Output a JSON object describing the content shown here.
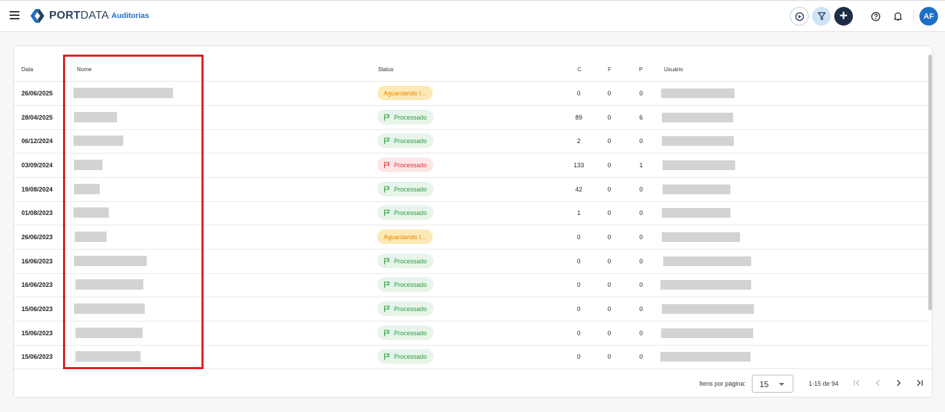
{
  "header": {
    "logo_text_1": "PORT",
    "logo_text_2": "DATA",
    "section": "Auditorias",
    "avatar": "AF",
    "add_label": "+"
  },
  "table": {
    "columns": [
      "Data",
      "Nome",
      "Status",
      "C",
      "F",
      "P",
      "Usuário"
    ],
    "rows": [
      {
        "date": "26/06/2025",
        "status": "Aguardando I...",
        "status_type": "wait",
        "c": "0",
        "f": "0",
        "p": "0"
      },
      {
        "date": "28/04/2025",
        "status": "Processado",
        "status_type": "ok",
        "c": "89",
        "f": "0",
        "p": "6"
      },
      {
        "date": "06/12/2024",
        "status": "Processado",
        "status_type": "ok",
        "c": "2",
        "f": "0",
        "p": "0"
      },
      {
        "date": "03/09/2024",
        "status": "Processado",
        "status_type": "error",
        "c": "133",
        "f": "0",
        "p": "1"
      },
      {
        "date": "19/08/2024",
        "status": "Processado",
        "status_type": "ok",
        "c": "42",
        "f": "0",
        "p": "0"
      },
      {
        "date": "01/08/2023",
        "status": "Processado",
        "status_type": "ok",
        "c": "1",
        "f": "0",
        "p": "0"
      },
      {
        "date": "26/06/2023",
        "status": "Aguardando I...",
        "status_type": "wait",
        "c": "0",
        "f": "0",
        "p": "0"
      },
      {
        "date": "16/06/2023",
        "status": "Processado",
        "status_type": "ok",
        "c": "0",
        "f": "0",
        "p": "0"
      },
      {
        "date": "16/06/2023",
        "status": "Processado",
        "status_type": "ok",
        "c": "0",
        "f": "0",
        "p": "0"
      },
      {
        "date": "15/06/2023",
        "status": "Processado",
        "status_type": "ok",
        "c": "0",
        "f": "0",
        "p": "0"
      },
      {
        "date": "15/06/2023",
        "status": "Processado",
        "status_type": "ok",
        "c": "0",
        "f": "0",
        "p": "0"
      },
      {
        "date": "15/06/2023",
        "status": "Processado",
        "status_type": "ok",
        "c": "0",
        "f": "0",
        "p": "0"
      }
    ]
  },
  "footer": {
    "items_per_page_label": "Itens por página:",
    "items_per_page_value": "15",
    "range": "1-15 de 94"
  },
  "colors": {
    "accent": "#1e6fc7",
    "navy": "#1c2d46",
    "ok": "#2e9b46",
    "error": "#d8343f",
    "wait": "#e08a00",
    "highlight": "#d9201e"
  },
  "icons": [
    "menu-icon",
    "logo-icon",
    "play-icon",
    "filter-icon",
    "add-icon",
    "help-icon",
    "bell-icon",
    "flag-icon",
    "first-page-icon",
    "prev-page-icon",
    "next-page-icon",
    "last-page-icon"
  ]
}
